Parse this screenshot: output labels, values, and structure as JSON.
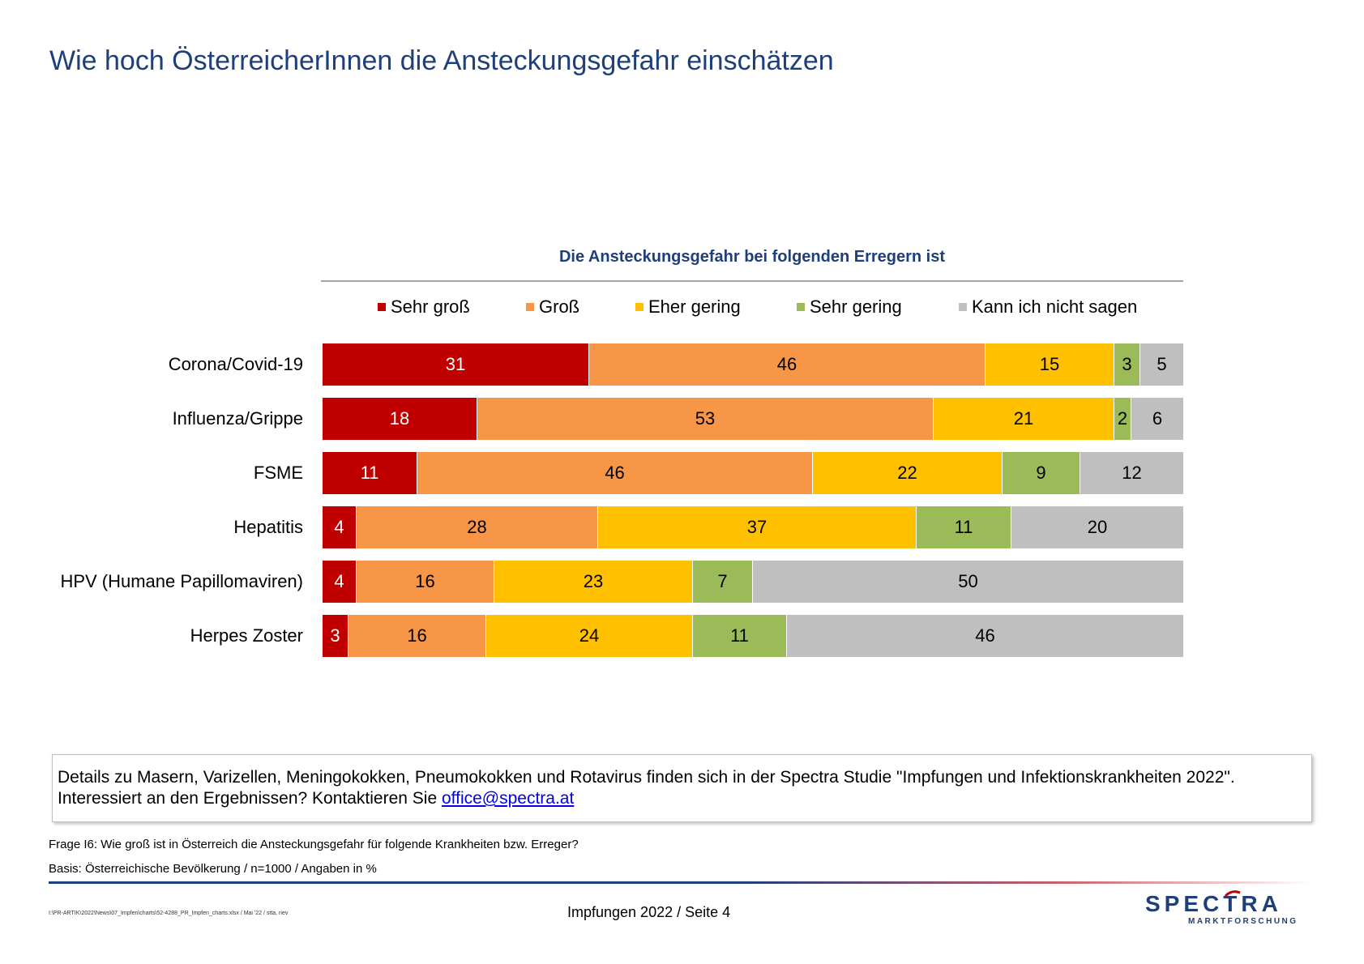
{
  "header": {
    "title": "Wie hoch ÖsterreicherInnen die Ansteckungsgefahr einschätzen"
  },
  "chart_data": {
    "type": "bar",
    "orientation": "horizontal",
    "stacked": true,
    "title": "Die Ansteckungsgefahr bei folgenden Erregern ist",
    "categories": [
      "Corona/Covid-19",
      "Influenza/Grippe",
      "FSME",
      "Hepatitis",
      "HPV (Humane Papillomaviren)",
      "Herpes Zoster"
    ],
    "series": [
      {
        "name": "Sehr groß",
        "color": "#c00000",
        "label_color": "#ffffff",
        "values": [
          31,
          18,
          11,
          4,
          4,
          3
        ]
      },
      {
        "name": "Groß",
        "color": "#f79646",
        "label_color": "#000000",
        "values": [
          46,
          53,
          46,
          28,
          16,
          16
        ]
      },
      {
        "name": "Eher gering",
        "color": "#ffc000",
        "label_color": "#000000",
        "values": [
          15,
          21,
          22,
          37,
          23,
          24
        ]
      },
      {
        "name": "Sehr gering",
        "color": "#9bbb59",
        "label_color": "#000000",
        "values": [
          3,
          2,
          9,
          11,
          7,
          11
        ]
      },
      {
        "name": "Kann ich nicht sagen",
        "color": "#bfbfbf",
        "label_color": "#000000",
        "values": [
          5,
          6,
          12,
          20,
          50,
          46
        ]
      }
    ],
    "legend_position": "top",
    "grid": false,
    "xlim": [
      0,
      100
    ]
  },
  "note": {
    "line1": "Details zu Masern, Varizellen, Meningokokken, Pneumokokken und Rotavirus finden sich in der Spectra Studie \"Impfungen und Infektionskrankheiten 2022\".",
    "line2_prefix": "Interessiert an den Ergebnissen? Kontaktieren Sie ",
    "email": "office@spectra.at"
  },
  "footer": {
    "question": "Frage I6: Wie groß ist in Österreich die Ansteckungsgefahr für folgende Krankheiten bzw. Erreger?",
    "basis": "Basis: Österreichische Bevölkerung / n=1000 / Angaben in %",
    "filepath": "I:\\PR-ARTIK\\2022\\News\\07_Impfen\\charts\\52-4288_PR_Impfen_charts.xlsx / Mai '22 / stta, riev",
    "page": "Impfungen 2022  /  Seite  4"
  },
  "logo": {
    "word": "SPECTRA",
    "sub": "MARKTFORSCHUNG",
    "color": "#1f3f7a",
    "accent": "#c00000"
  }
}
